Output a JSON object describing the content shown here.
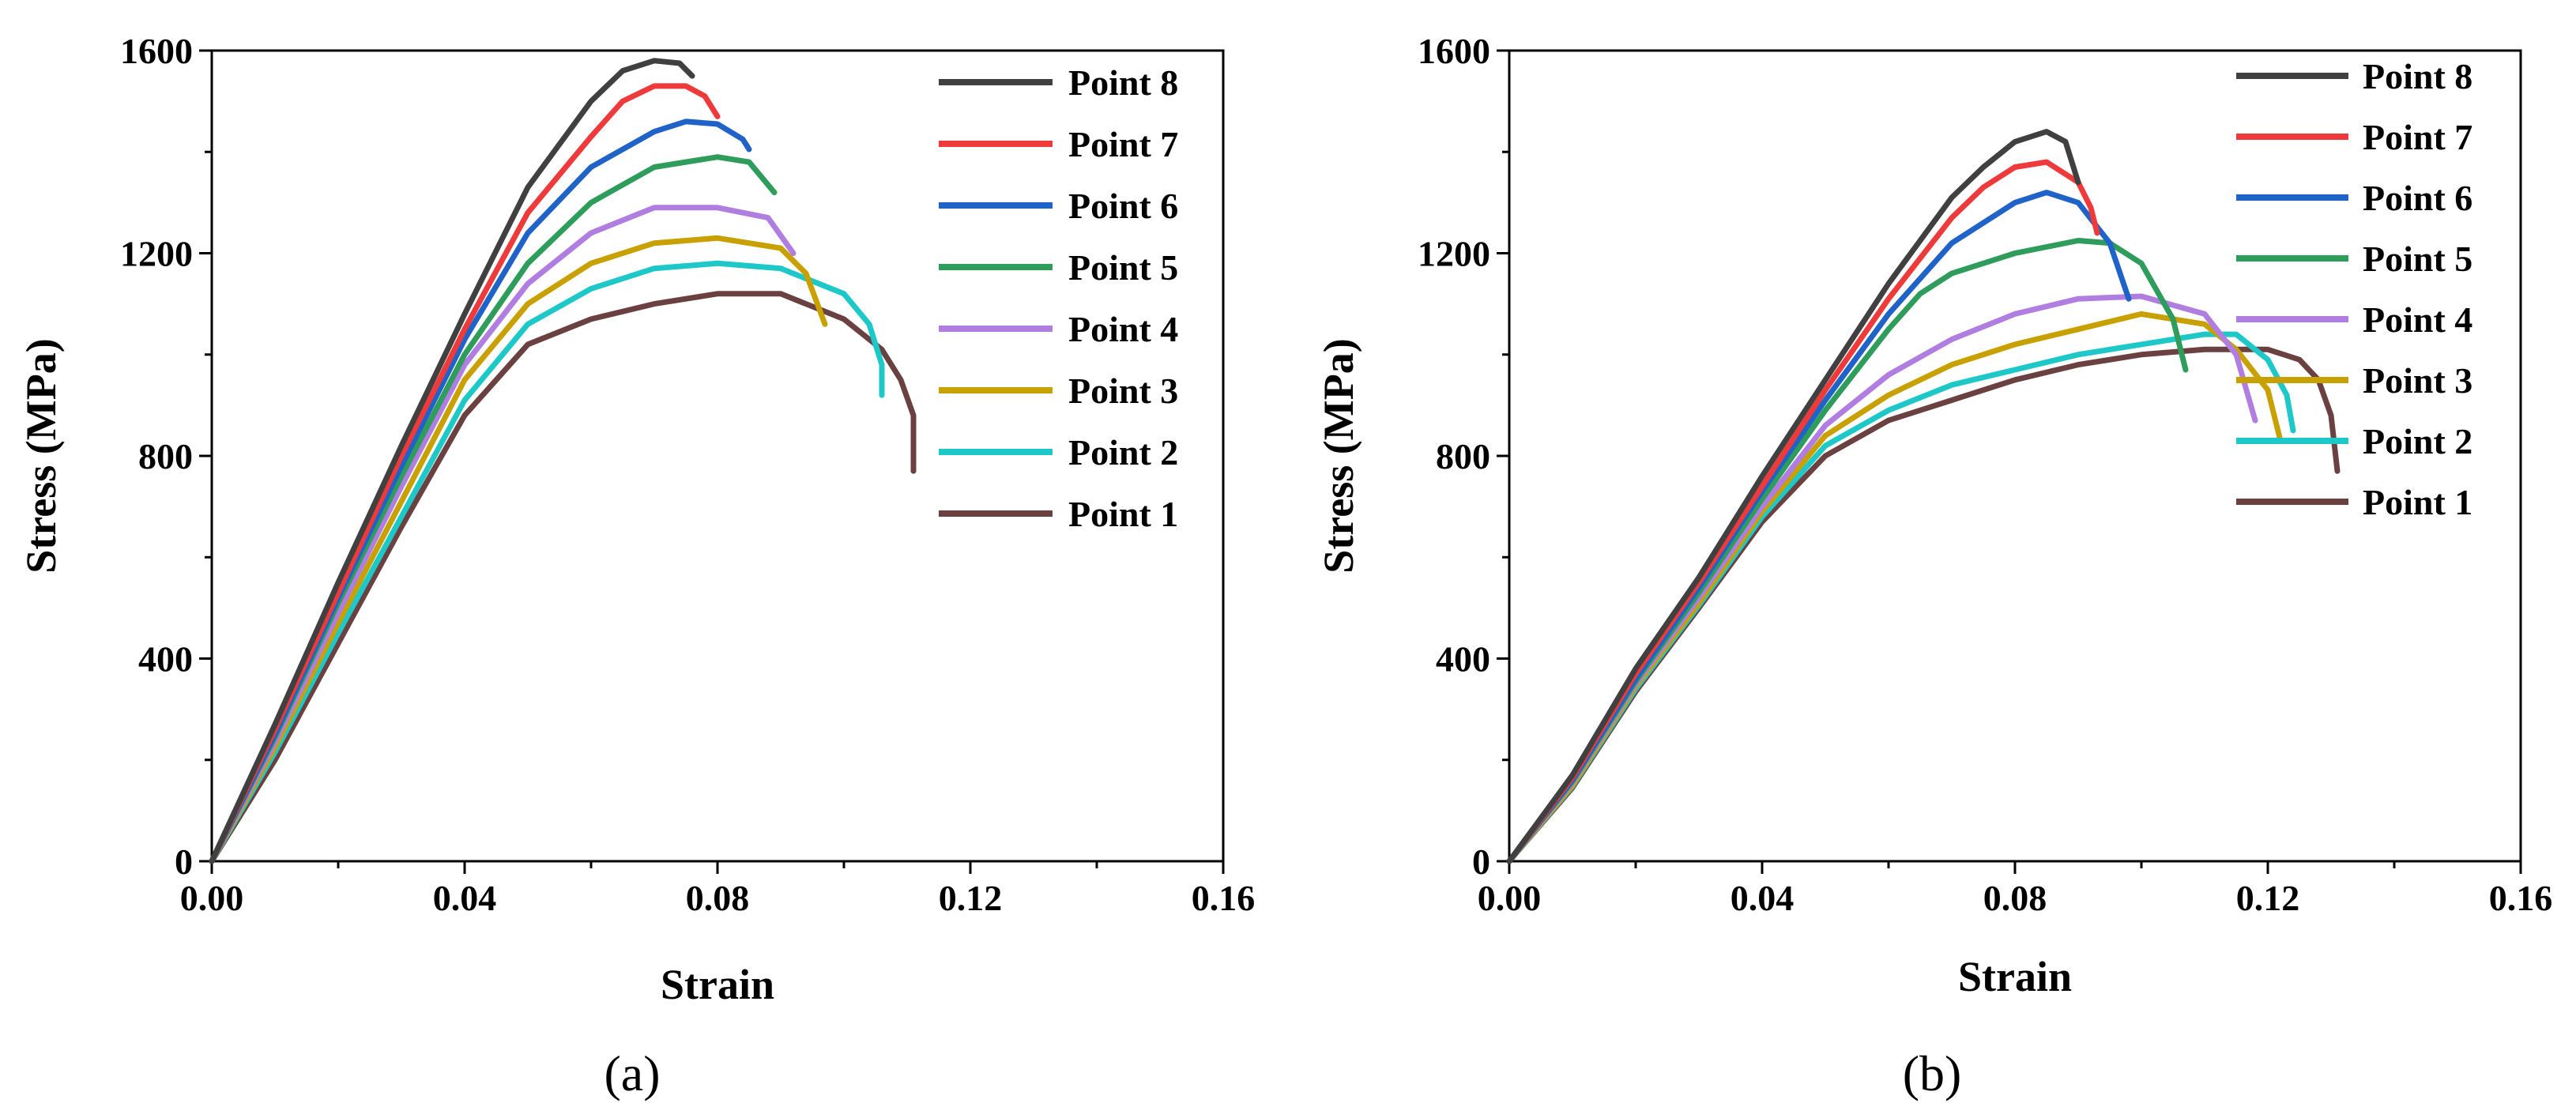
{
  "chart_data": [
    {
      "type": "line",
      "panel_label": "(a)",
      "xlabel": "Strain",
      "ylabel": "Stress (MPa)",
      "xlim": [
        0,
        0.16
      ],
      "ylim": [
        0,
        1600
      ],
      "xticks": [
        "0.00",
        "0.04",
        "0.08",
        "0.12",
        "0.16"
      ],
      "yticks": [
        "0",
        "400",
        "800",
        "1200",
        "1600"
      ],
      "legend_position": "top-right",
      "series": [
        {
          "name": "Point 8",
          "color": "#404040",
          "x": [
            0,
            0.01,
            0.02,
            0.03,
            0.04,
            0.05,
            0.06,
            0.065,
            0.07,
            0.074,
            0.076
          ],
          "y": [
            0,
            270,
            550,
            820,
            1080,
            1330,
            1500,
            1560,
            1580,
            1575,
            1550
          ]
        },
        {
          "name": "Point 7",
          "color": "#ee3a3a",
          "x": [
            0,
            0.01,
            0.02,
            0.03,
            0.04,
            0.05,
            0.06,
            0.065,
            0.07,
            0.075,
            0.078,
            0.08
          ],
          "y": [
            0,
            260,
            530,
            800,
            1050,
            1280,
            1430,
            1500,
            1530,
            1530,
            1510,
            1470
          ]
        },
        {
          "name": "Point 6",
          "color": "#1f63c8",
          "x": [
            0,
            0.01,
            0.02,
            0.03,
            0.04,
            0.05,
            0.06,
            0.07,
            0.075,
            0.08,
            0.084,
            0.085
          ],
          "y": [
            0,
            250,
            520,
            780,
            1030,
            1240,
            1370,
            1440,
            1460,
            1455,
            1425,
            1405
          ]
        },
        {
          "name": "Point 5",
          "color": "#2e9c5a",
          "x": [
            0,
            0.01,
            0.02,
            0.03,
            0.04,
            0.05,
            0.06,
            0.07,
            0.08,
            0.085,
            0.089
          ],
          "y": [
            0,
            245,
            510,
            760,
            1000,
            1180,
            1300,
            1370,
            1390,
            1380,
            1320
          ]
        },
        {
          "name": "Point 4",
          "color": "#b07ee0",
          "x": [
            0,
            0.01,
            0.02,
            0.03,
            0.04,
            0.05,
            0.06,
            0.07,
            0.08,
            0.088,
            0.092
          ],
          "y": [
            0,
            235,
            490,
            740,
            980,
            1140,
            1240,
            1290,
            1290,
            1270,
            1200
          ]
        },
        {
          "name": "Point 3",
          "color": "#c8a000",
          "x": [
            0,
            0.01,
            0.02,
            0.03,
            0.04,
            0.05,
            0.06,
            0.07,
            0.08,
            0.09,
            0.094,
            0.097
          ],
          "y": [
            0,
            225,
            470,
            710,
            950,
            1100,
            1180,
            1220,
            1230,
            1210,
            1160,
            1060
          ]
        },
        {
          "name": "Point 2",
          "color": "#1ec8c8",
          "x": [
            0,
            0.01,
            0.02,
            0.03,
            0.04,
            0.05,
            0.06,
            0.07,
            0.08,
            0.09,
            0.1,
            0.104,
            0.106,
            0.106
          ],
          "y": [
            0,
            215,
            450,
            680,
            910,
            1060,
            1130,
            1170,
            1180,
            1170,
            1120,
            1060,
            980,
            920
          ]
        },
        {
          "name": "Point 1",
          "color": "#6b4040",
          "x": [
            0,
            0.01,
            0.02,
            0.03,
            0.04,
            0.05,
            0.06,
            0.07,
            0.08,
            0.09,
            0.1,
            0.106,
            0.109,
            0.111,
            0.111
          ],
          "y": [
            0,
            200,
            430,
            660,
            880,
            1020,
            1070,
            1100,
            1120,
            1120,
            1070,
            1010,
            950,
            880,
            770
          ]
        }
      ]
    },
    {
      "type": "line",
      "panel_label": "(b)",
      "xlabel": "Strain",
      "ylabel": "Stress (MPa)",
      "xlim": [
        0,
        0.16
      ],
      "ylim": [
        0,
        1600
      ],
      "xticks": [
        "0.00",
        "0.04",
        "0.08",
        "0.12",
        "0.16"
      ],
      "yticks": [
        "0",
        "400",
        "800",
        "1200",
        "1600"
      ],
      "legend_position": "top-right",
      "series": [
        {
          "name": "Point 8",
          "color": "#404040",
          "x": [
            0,
            0.01,
            0.02,
            0.03,
            0.04,
            0.05,
            0.06,
            0.07,
            0.075,
            0.08,
            0.085,
            0.088,
            0.09
          ],
          "y": [
            0,
            170,
            380,
            560,
            760,
            950,
            1140,
            1310,
            1370,
            1420,
            1440,
            1420,
            1340
          ]
        },
        {
          "name": "Point 7",
          "color": "#ee3a3a",
          "x": [
            0,
            0.01,
            0.02,
            0.03,
            0.04,
            0.05,
            0.06,
            0.07,
            0.075,
            0.08,
            0.085,
            0.09,
            0.092,
            0.093
          ],
          "y": [
            0,
            165,
            370,
            550,
            740,
            930,
            1110,
            1270,
            1330,
            1370,
            1380,
            1340,
            1290,
            1240
          ]
        },
        {
          "name": "Point 6",
          "color": "#1f63c8",
          "x": [
            0,
            0.01,
            0.02,
            0.03,
            0.04,
            0.05,
            0.06,
            0.07,
            0.08,
            0.085,
            0.09,
            0.095,
            0.098
          ],
          "y": [
            0,
            160,
            360,
            540,
            730,
            910,
            1080,
            1220,
            1300,
            1320,
            1300,
            1220,
            1110
          ]
        },
        {
          "name": "Point 5",
          "color": "#2e9c5a",
          "x": [
            0,
            0.01,
            0.02,
            0.03,
            0.04,
            0.05,
            0.06,
            0.065,
            0.07,
            0.08,
            0.09,
            0.095,
            0.1,
            0.105,
            0.107
          ],
          "y": [
            0,
            158,
            355,
            530,
            715,
            890,
            1050,
            1120,
            1160,
            1200,
            1225,
            1220,
            1180,
            1070,
            970
          ]
        },
        {
          "name": "Point 4",
          "color": "#b07ee0",
          "x": [
            0,
            0.01,
            0.02,
            0.03,
            0.04,
            0.05,
            0.06,
            0.07,
            0.08,
            0.09,
            0.1,
            0.11,
            0.115,
            0.118
          ],
          "y": [
            0,
            155,
            350,
            520,
            700,
            860,
            960,
            1030,
            1080,
            1110,
            1115,
            1080,
            1000,
            870
          ]
        },
        {
          "name": "Point 3",
          "color": "#c8a000",
          "x": [
            0,
            0.01,
            0.02,
            0.03,
            0.04,
            0.05,
            0.06,
            0.07,
            0.08,
            0.09,
            0.1,
            0.11,
            0.115,
            0.12,
            0.122
          ],
          "y": [
            0,
            150,
            345,
            510,
            690,
            840,
            920,
            980,
            1020,
            1050,
            1080,
            1060,
            1010,
            930,
            830
          ]
        },
        {
          "name": "Point 2",
          "color": "#1ec8c8",
          "x": [
            0,
            0.01,
            0.02,
            0.03,
            0.04,
            0.05,
            0.06,
            0.07,
            0.08,
            0.09,
            0.1,
            0.11,
            0.115,
            0.12,
            0.123,
            0.124
          ],
          "y": [
            0,
            148,
            340,
            505,
            680,
            820,
            890,
            940,
            970,
            1000,
            1020,
            1040,
            1040,
            990,
            920,
            850
          ]
        },
        {
          "name": "Point 1",
          "color": "#6b4040",
          "x": [
            0,
            0.01,
            0.02,
            0.03,
            0.04,
            0.05,
            0.06,
            0.07,
            0.08,
            0.09,
            0.1,
            0.11,
            0.12,
            0.125,
            0.128,
            0.13,
            0.131
          ],
          "y": [
            0,
            145,
            335,
            500,
            670,
            800,
            870,
            910,
            950,
            980,
            1000,
            1010,
            1010,
            990,
            950,
            880,
            770
          ]
        }
      ]
    }
  ]
}
